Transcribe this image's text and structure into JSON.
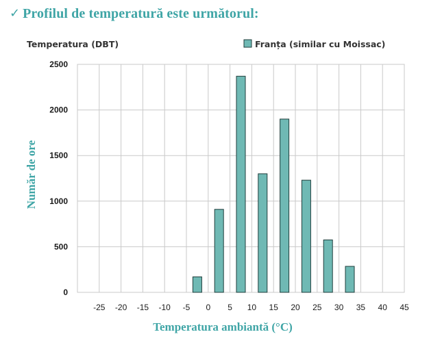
{
  "heading": {
    "icon": "checkmark-icon",
    "title": "Profilul de temperatură este următorul:"
  },
  "colors": {
    "accent": "#3fa5a6",
    "bar_fill": "#6fb9b4",
    "bar_stroke": "#1f3d3b",
    "grid": "#c9c9c9"
  },
  "chart_data": {
    "type": "bar",
    "title": "",
    "top_left_label": "Temperatura (DBT)",
    "xlabel": "Temperatura ambiantă (°C)",
    "ylabel": "Număr de ore",
    "xlim": [
      -30,
      45
    ],
    "ylim": [
      0,
      2500
    ],
    "x_ticks": [
      -25,
      -20,
      -15,
      -10,
      -5,
      0,
      5,
      10,
      15,
      20,
      25,
      30,
      35,
      40,
      45
    ],
    "y_ticks": [
      0,
      500,
      1000,
      1500,
      2000,
      2500
    ],
    "grid": true,
    "legend_position": "top-right",
    "series": [
      {
        "name": "Franța (similar cu Moissac)",
        "x": [
          -2.5,
          2.5,
          7.5,
          12.5,
          17.5,
          22.5,
          27.5,
          32.5
        ],
        "values": [
          170,
          910,
          2370,
          1300,
          1900,
          1230,
          575,
          285
        ]
      }
    ]
  }
}
